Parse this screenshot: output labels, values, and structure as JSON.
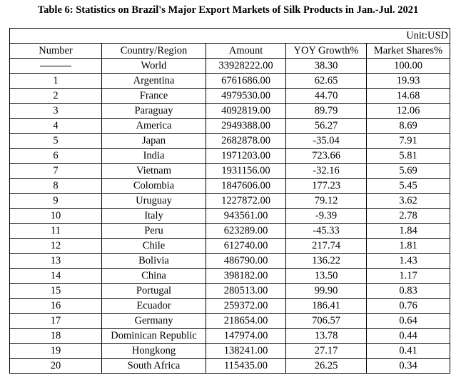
{
  "title": "Table 6: Statistics on Brazil's Major Export Markets of Silk Products in Jan.-Jul. 2021",
  "unit": "Unit:USD",
  "headers": [
    "Number",
    "Country/Region",
    "Amount",
    "YOY Growth%",
    "Market Shares%"
  ],
  "rows": [
    [
      "——",
      "World",
      "33928222.00",
      "38.30",
      "100.00"
    ],
    [
      "1",
      "Argentina",
      "6761686.00",
      "62.65",
      "19.93"
    ],
    [
      "2",
      "France",
      "4979530.00",
      "44.70",
      "14.68"
    ],
    [
      "3",
      "Paraguay",
      "4092819.00",
      "89.79",
      "12.06"
    ],
    [
      "4",
      "America",
      "2949388.00",
      "56.27",
      "8.69"
    ],
    [
      "5",
      "Japan",
      "2682878.00",
      "-35.04",
      "7.91"
    ],
    [
      "6",
      "India",
      "1971203.00",
      "723.66",
      "5.81"
    ],
    [
      "7",
      "Vietnam",
      "1931156.00",
      "-32.16",
      "5.69"
    ],
    [
      "8",
      "Colombia",
      "1847606.00",
      "177.23",
      "5.45"
    ],
    [
      "9",
      "Uruguay",
      "1227872.00",
      "79.12",
      "3.62"
    ],
    [
      "10",
      "Italy",
      "943561.00",
      "-9.39",
      "2.78"
    ],
    [
      "11",
      "Peru",
      "623289.00",
      "-45.33",
      "1.84"
    ],
    [
      "12",
      "Chile",
      "612740.00",
      "217.74",
      "1.81"
    ],
    [
      "13",
      "Bolivia",
      "486790.00",
      "136.22",
      "1.43"
    ],
    [
      "14",
      "China",
      "398182.00",
      "13.50",
      "1.17"
    ],
    [
      "15",
      "Portugal",
      "280513.00",
      "99.90",
      "0.83"
    ],
    [
      "16",
      "Ecuador",
      "259372.00",
      "186.41",
      "0.76"
    ],
    [
      "17",
      "Germany",
      "218654.00",
      "706.57",
      "0.64"
    ],
    [
      "18",
      "Dominican Republic",
      "147974.00",
      "13.78",
      "0.44"
    ],
    [
      "19",
      "Hongkong",
      "138241.00",
      "27.17",
      "0.41"
    ],
    [
      "20",
      "South Africa",
      "115435.00",
      "26.25",
      "0.34"
    ]
  ]
}
